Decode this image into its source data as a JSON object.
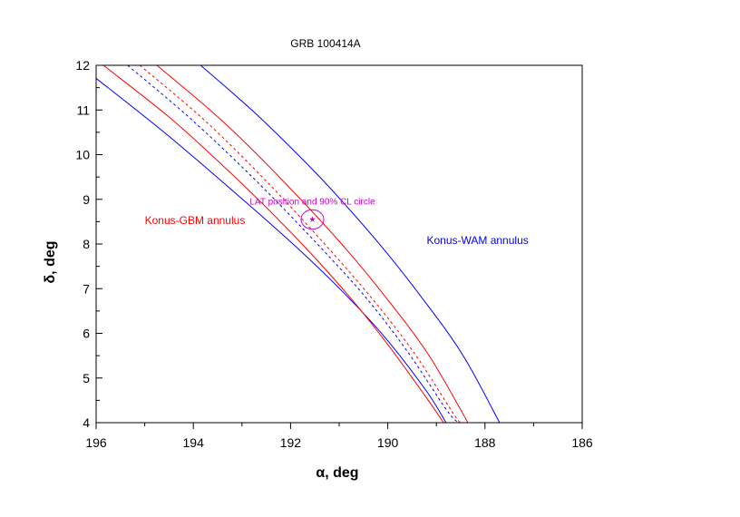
{
  "chart_data": {
    "type": "line",
    "title": "GRB 100414A",
    "xlabel": "α, deg",
    "ylabel": "δ, deg",
    "xlim": [
      196,
      186
    ],
    "ylim": [
      4,
      12
    ],
    "xticks": [
      196,
      194,
      192,
      190,
      188,
      186
    ],
    "yticks": [
      4,
      5,
      6,
      7,
      8,
      9,
      10,
      11,
      12
    ],
    "grid": false,
    "series": [
      {
        "name": "Konus-WAM annulus",
        "role": "inner",
        "color": "#0000ff",
        "style": "solid",
        "points": [
          [
            196.05,
            11.75
          ],
          [
            194.6,
            10.5
          ],
          [
            193.2,
            9.2
          ],
          [
            191.9,
            7.95
          ],
          [
            190.9,
            6.9
          ],
          [
            190.05,
            5.9
          ],
          [
            189.2,
            4.7
          ],
          [
            188.8,
            4.0
          ]
        ]
      },
      {
        "name": "Konus-WAM annulus",
        "role": "outer",
        "color": "#0000ff",
        "style": "solid",
        "points": [
          [
            193.85,
            12.0
          ],
          [
            192.65,
            10.85
          ],
          [
            191.4,
            9.5
          ],
          [
            190.25,
            8.1
          ],
          [
            189.3,
            6.8
          ],
          [
            188.45,
            5.5
          ],
          [
            187.7,
            4.0
          ]
        ]
      },
      {
        "name": "Konus-GBM annulus",
        "role": "inner",
        "color": "#ff0000",
        "style": "solid",
        "points": [
          [
            195.85,
            12.0
          ],
          [
            194.4,
            10.75
          ],
          [
            193.0,
            9.35
          ],
          [
            191.85,
            8.1
          ],
          [
            190.85,
            6.9
          ],
          [
            190.0,
            5.75
          ],
          [
            189.2,
            4.55
          ],
          [
            188.85,
            4.0
          ]
        ]
      },
      {
        "name": "Konus-GBM annulus",
        "role": "outer",
        "color": "#ff0000",
        "style": "solid",
        "points": [
          [
            194.75,
            12.0
          ],
          [
            193.4,
            10.75
          ],
          [
            192.1,
            9.35
          ],
          [
            190.95,
            8.0
          ],
          [
            190.0,
            6.75
          ],
          [
            189.15,
            5.5
          ],
          [
            188.35,
            4.0
          ]
        ]
      },
      {
        "name": "",
        "role": "central",
        "color": "#0000ff",
        "style": "dashed",
        "points": [
          [
            195.35,
            12.0
          ],
          [
            194.0,
            10.75
          ],
          [
            192.65,
            9.35
          ],
          [
            191.45,
            8.0
          ],
          [
            190.45,
            6.8
          ],
          [
            189.6,
            5.6
          ],
          [
            188.8,
            4.3
          ],
          [
            188.55,
            4.0
          ]
        ]
      },
      {
        "name": "",
        "role": "central",
        "color": "#ff0000",
        "style": "dashed",
        "points": [
          [
            195.1,
            12.0
          ],
          [
            193.75,
            10.75
          ],
          [
            192.45,
            9.35
          ],
          [
            191.3,
            8.0
          ],
          [
            190.3,
            6.75
          ],
          [
            189.45,
            5.55
          ],
          [
            188.65,
            4.2
          ],
          [
            188.5,
            4.0
          ]
        ]
      }
    ],
    "lat_position": {
      "x": 191.55,
      "y": 8.55,
      "radius_deg": 0.18,
      "color": "#cc00cc"
    },
    "annotations": [
      {
        "text": "LAT position and 90% CL circle",
        "x": 191.55,
        "y": 8.88,
        "color": "#cc00cc"
      },
      {
        "text": "Konus-GBM annulus",
        "x": 195.0,
        "y": 8.45,
        "color": "#ff0000"
      },
      {
        "text": "Konus-WAM annulus",
        "x": 189.2,
        "y": 8.0,
        "color": "#0000ff"
      }
    ],
    "colors": {
      "axis": "#000000",
      "konus_wam": "#0000ff",
      "konus_gbm": "#ff0000",
      "lat": "#cc00cc"
    }
  }
}
